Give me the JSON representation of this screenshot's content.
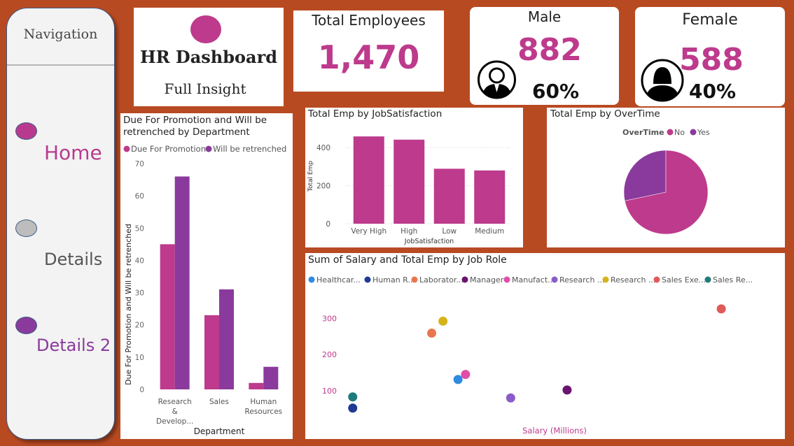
{
  "navigation": {
    "title": "Navigation",
    "items": [
      {
        "label": "Home",
        "dot_color": "#b83a8e",
        "label_color": "#b83a8e"
      },
      {
        "label": "Details",
        "dot_color": "#bdbdbd",
        "label_color": "#555555"
      },
      {
        "label": "Details 2",
        "dot_color": "#8a3a9c",
        "label_color": "#8a3a9c"
      }
    ]
  },
  "header": {
    "title": "HR Dashboard",
    "subtitle": "Full Insight"
  },
  "kpis": {
    "total": {
      "label": "Total Employees",
      "value": "1,470"
    },
    "male": {
      "label": "Male",
      "value": "882",
      "percent": "60%",
      "icon": "male-user-icon"
    },
    "female": {
      "label": "Female",
      "value": "588",
      "percent": "40%",
      "icon": "female-user-icon"
    }
  },
  "colors": {
    "accent": "#bd3a8c",
    "secondary": "#8a3a9c",
    "background": "#b84a22"
  },
  "chart_data": [
    {
      "id": "promotion",
      "type": "bar",
      "title": "Due For Promotion and Will be retrenched by Department",
      "title_lines": [
        "Due For Promotion and Will be",
        "retrenched by Department"
      ],
      "xlabel": "Department",
      "ylabel": "Due For Promotion and Will be retrenched",
      "categories": [
        "Research & Develop...",
        "Sales",
        "Human Resources"
      ],
      "category_lines": [
        [
          "Research",
          "&",
          "Develop..."
        ],
        [
          "Sales"
        ],
        [
          "Human",
          "Resources"
        ]
      ],
      "series": [
        {
          "name": "Due For Promotion",
          "color": "#bd3a8c",
          "values": [
            45,
            23,
            2
          ]
        },
        {
          "name": "Will be retrenched",
          "color": "#8a3a9c",
          "values": [
            66,
            31,
            7
          ]
        }
      ],
      "ylim": [
        0,
        70
      ],
      "yticks": [
        0,
        10,
        20,
        30,
        40,
        50,
        60,
        70
      ],
      "legend": "top",
      "grid": false
    },
    {
      "id": "jobsat",
      "type": "bar",
      "title": "Total Emp by JobSatisfaction",
      "xlabel": "JobSatisfaction",
      "ylabel": "Total Emp",
      "categories": [
        "Very High",
        "High",
        "Low",
        "Medium"
      ],
      "values": [
        459,
        442,
        289,
        280
      ],
      "color": "#bd3a8c",
      "ylim": [
        0,
        500
      ],
      "yticks": [
        0,
        200,
        400
      ],
      "grid": true
    },
    {
      "id": "overtime",
      "type": "pie",
      "title": "Total Emp by OverTime",
      "legend_title": "OverTime",
      "labels": [
        "No",
        "Yes"
      ],
      "values": [
        1054,
        416
      ],
      "colors": [
        "#bd3a8c",
        "#8a3a9c"
      ],
      "legend": "top"
    },
    {
      "id": "salary",
      "type": "scatter",
      "title": "Sum of Salary and Total Emp by Job Role",
      "xlabel": "Salary (Millions)",
      "ylabel": "",
      "yticks": [
        100,
        200,
        300
      ],
      "ylim": [
        40,
        345
      ],
      "xlim": [
        0,
        10.5
      ],
      "legend": "top",
      "series": [
        {
          "name": "Healthcar...",
          "color": "#2e8bde",
          "points": [
            [
              3.0,
              131
            ]
          ]
        },
        {
          "name": "Human R...",
          "color": "#1f3a93",
          "points": [
            [
              0.2,
              52
            ]
          ]
        },
        {
          "name": "Laborator...",
          "color": "#e8764e",
          "points": [
            [
              2.3,
              259
            ]
          ]
        },
        {
          "name": "Manager",
          "color": "#6a1370",
          "points": [
            [
              5.9,
              102
            ]
          ]
        },
        {
          "name": "Manufact...",
          "color": "#e04ea8",
          "points": [
            [
              3.2,
              145
            ]
          ]
        },
        {
          "name": "Research ...",
          "color": "#8a5cc9",
          "points": [
            [
              4.4,
              80
            ]
          ]
        },
        {
          "name": "Research ...",
          "color": "#d4b41a",
          "points": [
            [
              2.6,
              292
            ]
          ]
        },
        {
          "name": "Sales Exe...",
          "color": "#e05a5a",
          "points": [
            [
              10.0,
              326
            ]
          ]
        },
        {
          "name": "Sales Re...",
          "color": "#1f7b7b",
          "points": [
            [
              0.2,
              83
            ]
          ]
        }
      ]
    }
  ]
}
